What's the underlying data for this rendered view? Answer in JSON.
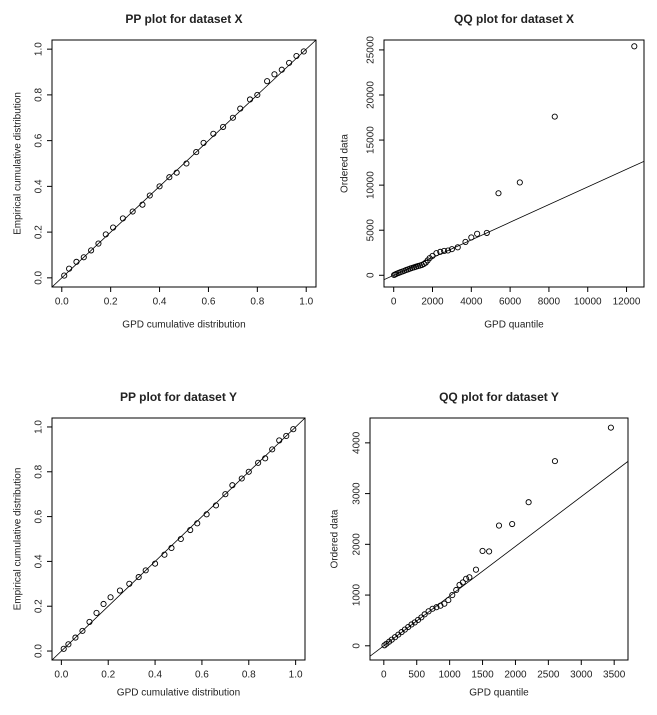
{
  "chart_data": [
    {
      "type": "scatter",
      "title": "PP plot for dataset X",
      "x_label": "GPD cumulative distribution",
      "y_label": "Empirical cumulative distribution",
      "x": [
        0.01,
        0.03,
        0.06,
        0.09,
        0.12,
        0.15,
        0.18,
        0.21,
        0.25,
        0.29,
        0.33,
        0.36,
        0.4,
        0.44,
        0.47,
        0.51,
        0.55,
        0.58,
        0.62,
        0.66,
        0.7,
        0.73,
        0.77,
        0.8,
        0.84,
        0.87,
        0.9,
        0.93,
        0.96,
        0.99
      ],
      "values": [
        0.01,
        0.04,
        0.07,
        0.09,
        0.12,
        0.15,
        0.19,
        0.22,
        0.26,
        0.29,
        0.32,
        0.36,
        0.4,
        0.44,
        0.46,
        0.5,
        0.55,
        0.59,
        0.63,
        0.66,
        0.7,
        0.74,
        0.78,
        0.8,
        0.86,
        0.89,
        0.91,
        0.94,
        0.97,
        0.99
      ],
      "color": "#000000",
      "reference_line": {
        "intercept": 0,
        "slope": 1
      },
      "xlim": [
        -0.04,
        1.04
      ],
      "ylim": [
        -0.04,
        1.04
      ],
      "xticks": [
        {
          "value": 0,
          "label": "0.0"
        },
        0.2,
        0.4,
        0.6,
        0.8,
        {
          "value": 1,
          "label": "1.0"
        }
      ],
      "yticks": [
        {
          "value": 0,
          "label": "0.0"
        },
        0.2,
        0.4,
        0.6,
        0.8,
        {
          "value": 1,
          "label": "1.0"
        }
      ]
    },
    {
      "type": "scatter",
      "title": "QQ plot for dataset X",
      "x_label": "GPD quantile",
      "y_label": "Ordered data",
      "x": [
        20,
        80,
        150,
        250,
        350,
        450,
        550,
        650,
        750,
        850,
        950,
        1050,
        1150,
        1250,
        1350,
        1450,
        1550,
        1650,
        1750,
        1850,
        2000,
        2200,
        2400,
        2600,
        2800,
        3000,
        3300,
        3700,
        4000,
        4300,
        4800,
        5400,
        6500,
        8300,
        12400
      ],
      "values": [
        30,
        100,
        170,
        260,
        340,
        420,
        500,
        590,
        660,
        740,
        820,
        880,
        950,
        1020,
        1080,
        1150,
        1250,
        1400,
        1650,
        1900,
        2150,
        2450,
        2600,
        2700,
        2750,
        2900,
        3100,
        3700,
        4200,
        4600,
        4700,
        9100,
        10300,
        17600,
        25400
      ],
      "color": "#000000",
      "reference_line": {
        "intercept": 0,
        "slope": 0.98
      },
      "xlim": [
        -500,
        12900
      ],
      "ylim": [
        -1300,
        26100
      ],
      "xticks": [
        0,
        2000,
        4000,
        6000,
        8000,
        10000,
        12000
      ],
      "yticks": [
        0,
        5000,
        10000,
        15000,
        20000,
        25000
      ]
    },
    {
      "type": "scatter",
      "title": "PP plot for dataset Y",
      "x_label": "GPD cumulative distribution",
      "y_label": "Empirical cumulative distribution",
      "x": [
        0.01,
        0.03,
        0.06,
        0.09,
        0.12,
        0.15,
        0.18,
        0.21,
        0.25,
        0.29,
        0.33,
        0.36,
        0.4,
        0.44,
        0.47,
        0.51,
        0.55,
        0.58,
        0.62,
        0.66,
        0.7,
        0.73,
        0.77,
        0.8,
        0.84,
        0.87,
        0.9,
        0.93,
        0.96,
        0.99
      ],
      "values": [
        0.01,
        0.03,
        0.06,
        0.09,
        0.13,
        0.17,
        0.21,
        0.24,
        0.27,
        0.3,
        0.33,
        0.36,
        0.39,
        0.43,
        0.46,
        0.5,
        0.54,
        0.57,
        0.61,
        0.65,
        0.7,
        0.74,
        0.77,
        0.8,
        0.84,
        0.86,
        0.9,
        0.94,
        0.96,
        0.99
      ],
      "color": "#000000",
      "reference_line": {
        "intercept": 0,
        "slope": 1
      },
      "xlim": [
        -0.04,
        1.04
      ],
      "ylim": [
        -0.04,
        1.04
      ],
      "xticks": [
        {
          "value": 0,
          "label": "0.0"
        },
        0.2,
        0.4,
        0.6,
        0.8,
        {
          "value": 1,
          "label": "1.0"
        }
      ],
      "yticks": [
        {
          "value": 0,
          "label": "0.0"
        },
        0.2,
        0.4,
        0.6,
        0.8,
        {
          "value": 1,
          "label": "1.0"
        }
      ]
    },
    {
      "type": "scatter",
      "title": "QQ plot for dataset Y",
      "x_label": "GPD quantile",
      "y_label": "Ordered data",
      "x": [
        10,
        40,
        80,
        120,
        170,
        220,
        270,
        320,
        370,
        420,
        470,
        520,
        570,
        620,
        680,
        740,
        800,
        860,
        920,
        980,
        1040,
        1100,
        1150,
        1200,
        1250,
        1300,
        1400,
        1500,
        1600,
        1750,
        1950,
        2200,
        2600,
        3450
      ],
      "values": [
        10,
        40,
        80,
        120,
        170,
        220,
        270,
        320,
        370,
        420,
        460,
        510,
        560,
        620,
        680,
        730,
        760,
        790,
        830,
        900,
        1000,
        1100,
        1200,
        1250,
        1320,
        1350,
        1500,
        1870,
        1860,
        2370,
        2400,
        2830,
        3640,
        4300
      ],
      "color": "#000000",
      "reference_line": {
        "intercept": 0,
        "slope": 0.98
      },
      "xlim": [
        -210,
        3710
      ],
      "ylim": [
        -280,
        4490
      ],
      "xticks": [
        0,
        500,
        1000,
        1500,
        2000,
        2500,
        3000,
        3500
      ],
      "yticks": [
        0,
        1000,
        2000,
        3000,
        4000
      ]
    }
  ]
}
